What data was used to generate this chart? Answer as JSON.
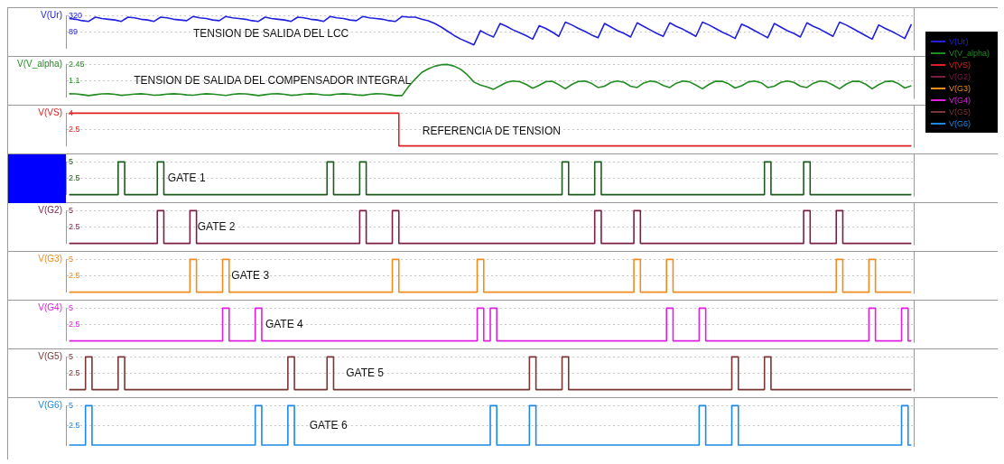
{
  "chart_data": [
    {
      "type": "line",
      "grid": "y",
      "legend": "right",
      "marker": "none",
      "ylim": [
        -140,
        320
      ],
      "yticks": [
        89,
        320
      ],
      "ylabel": "V(Ur)",
      "annotations": [
        "TENSION DE SALIDA DEL LCC"
      ],
      "categories": [
        null,
        null,
        null,
        null,
        null,
        null,
        null,
        null,
        null,
        null,
        null,
        null,
        null,
        null,
        null,
        null,
        null,
        null,
        null,
        null,
        null,
        null,
        null,
        null,
        null,
        null,
        null,
        null,
        null,
        null,
        null,
        null,
        null,
        null,
        null,
        null,
        null,
        null,
        null,
        null,
        null,
        null,
        null,
        null,
        null,
        null,
        null,
        null,
        null,
        null,
        null,
        null,
        null,
        null,
        null,
        null,
        null,
        null,
        null,
        null,
        null,
        null,
        null,
        null,
        null,
        null,
        null,
        null,
        null,
        null,
        null,
        null,
        null,
        null,
        null,
        null,
        null,
        null,
        null,
        null,
        null,
        null,
        null,
        null,
        null,
        null,
        null,
        null,
        null,
        null,
        null,
        null,
        null,
        null,
        null,
        null,
        null,
        null,
        null,
        null,
        null,
        null,
        null,
        null,
        null,
        null,
        null,
        null,
        null,
        null,
        null,
        null,
        null,
        null,
        null,
        null,
        null,
        null,
        null,
        null,
        null,
        null,
        null,
        null,
        null,
        null,
        null,
        null,
        null,
        null
      ],
      "series": [
        {
          "name": "V(Ur)",
          "color": "#2020e0",
          "values": [
            280,
            270,
            250,
            240,
            300,
            280,
            270,
            260,
            240,
            300,
            290,
            270,
            260,
            240,
            300,
            290,
            270,
            260,
            250,
            310,
            290,
            280,
            260,
            250,
            310,
            290,
            280,
            270,
            250,
            240,
            300,
            280,
            270,
            260,
            240,
            300,
            290,
            270,
            260,
            240,
            310,
            290,
            280,
            260,
            250,
            310,
            290,
            280,
            270,
            250,
            240,
            310,
            300,
            300,
            270,
            250,
            210,
            160,
            100,
            40,
            -10,
            -50,
            -90,
            110,
            60,
            20,
            210,
            170,
            120,
            80,
            40,
            -10,
            180,
            140,
            90,
            30,
            230,
            190,
            140,
            100,
            50,
            10,
            210,
            160,
            110,
            70,
            20,
            220,
            170,
            120,
            70,
            30,
            220,
            170,
            130,
            80,
            30,
            230,
            190,
            140,
            90,
            50,
            0,
            200,
            160,
            110,
            60,
            10,
            210,
            160,
            110,
            70,
            20,
            220,
            170,
            130,
            80,
            30,
            230,
            190,
            140,
            90,
            40,
            -10,
            190,
            140,
            100,
            50,
            0,
            200
          ]
        }
      ]
    },
    {
      "type": "line",
      "grid": "y",
      "legend": "right",
      "marker": "none",
      "ylim": [
        -0.3,
        2.45
      ],
      "yticks": [
        1.1,
        2.45
      ],
      "ylabel": "V(V_alpha)",
      "annotations": [
        "TENSION DE SALIDA DEL COMPENSADOR INTEGRAL"
      ],
      "categories": [
        null,
        null,
        null,
        null,
        null,
        null,
        null,
        null,
        null,
        null,
        null,
        null,
        null,
        null,
        null,
        null,
        null,
        null,
        null,
        null,
        null,
        null,
        null,
        null,
        null,
        null,
        null,
        null,
        null,
        null,
        null,
        null,
        null,
        null,
        null,
        null,
        null,
        null,
        null,
        null,
        null,
        null,
        null,
        null,
        null,
        null,
        null,
        null,
        null,
        null,
        null,
        null,
        null,
        null,
        null,
        null,
        null,
        null,
        null,
        null,
        null,
        null,
        null,
        null,
        null,
        null,
        null,
        null,
        null,
        null,
        null,
        null,
        null,
        null,
        null,
        null,
        null,
        null,
        null,
        null,
        null,
        null,
        null,
        null,
        null,
        null,
        null,
        null,
        null,
        null,
        null,
        null,
        null,
        null,
        null,
        null,
        null,
        null,
        null,
        null,
        null,
        null,
        null,
        null,
        null,
        null,
        null,
        null,
        null,
        null,
        null,
        null,
        null,
        null,
        null,
        null,
        null,
        null,
        null,
        null,
        null,
        null,
        null,
        null,
        null,
        null,
        null,
        null,
        null,
        null
      ],
      "series": [
        {
          "name": "V(V_alpha)",
          "color": "#228b22",
          "values": [
            -0.02,
            -0.03,
            -0.09,
            -0.17,
            -0.09,
            -0.03,
            -0.02,
            -0.06,
            -0.15,
            -0.1,
            -0.04,
            -0.02,
            -0.06,
            -0.14,
            -0.11,
            -0.05,
            -0.02,
            -0.05,
            -0.11,
            -0.14,
            -0.06,
            -0.02,
            -0.04,
            -0.1,
            -0.16,
            -0.07,
            -0.02,
            -0.03,
            -0.09,
            -0.17,
            -0.09,
            -0.03,
            -0.02,
            -0.07,
            -0.15,
            -0.11,
            -0.04,
            -0.02,
            -0.05,
            -0.12,
            -0.13,
            -0.05,
            -0.02,
            -0.04,
            -0.11,
            -0.15,
            -0.07,
            -0.02,
            -0.03,
            -0.09,
            -0.17,
            -0.17,
            0.6,
            1.22,
            1.78,
            2.08,
            2.3,
            2.43,
            2.45,
            2.3,
            2.03,
            1.57,
            0.97,
            0.72,
            0.57,
            0.36,
            0.66,
            0.94,
            1.06,
            1.0,
            0.77,
            0.45,
            0.7,
            1.0,
            1.04,
            0.74,
            0.4,
            0.77,
            1.02,
            1.05,
            0.86,
            0.51,
            0.62,
            0.94,
            1.06,
            0.94,
            0.62,
            0.51,
            0.89,
            1.05,
            0.97,
            0.68,
            0.51,
            0.87,
            1.05,
            0.99,
            0.71,
            0.4,
            0.77,
            1.03,
            1.04,
            0.82,
            0.47,
            0.66,
            0.97,
            1.06,
            0.91,
            0.51,
            0.62,
            0.94,
            1.06,
            0.94,
            0.62,
            0.51,
            0.87,
            1.05,
            0.99,
            0.71,
            0.4,
            0.79,
            1.03,
            1.03,
            0.79,
            0.4,
            0.75,
            1.01,
            1.05,
            0.84,
            0.47,
            0.66
          ]
        }
      ]
    },
    {
      "type": "step",
      "grid": "y",
      "legend": "right",
      "marker": "none",
      "ylim": [
        1,
        4
      ],
      "yticks": [
        2.5,
        4
      ],
      "ylabel": "V(VS)",
      "annotations": [
        "REFERENCIA DE TENSION"
      ],
      "categories": [
        null,
        null,
        null,
        null,
        null,
        null,
        null,
        null,
        null,
        null,
        null,
        null,
        null,
        null,
        null,
        null,
        null,
        null,
        null,
        null,
        null,
        null,
        null,
        null,
        null,
        null,
        null,
        null,
        null,
        null,
        null,
        null,
        null,
        null,
        null,
        null,
        null,
        null,
        null,
        null,
        null,
        null,
        null,
        null,
        null,
        null,
        null,
        null,
        null,
        null,
        null,
        null,
        null,
        null,
        null,
        null,
        null,
        null,
        null,
        null,
        null,
        null,
        null,
        null,
        null,
        null,
        null,
        null,
        null,
        null,
        null,
        null,
        null,
        null,
        null,
        null,
        null,
        null,
        null,
        null,
        null,
        null,
        null,
        null,
        null,
        null,
        null,
        null,
        null,
        null,
        null,
        null,
        null,
        null,
        null,
        null,
        null,
        null,
        null,
        null,
        null,
        null,
        null,
        null,
        null,
        null,
        null,
        null,
        null,
        null,
        null,
        null,
        null,
        null,
        null,
        null,
        null,
        null,
        null,
        null,
        null,
        null,
        null,
        null,
        null,
        null,
        null,
        null,
        null,
        null
      ],
      "series": [
        {
          "name": "V(VS)",
          "color": "#e02020",
          "values": [
            4,
            4,
            4,
            4,
            4,
            4,
            4,
            4,
            4,
            4,
            4,
            4,
            4,
            4,
            4,
            4,
            4,
            4,
            4,
            4,
            4,
            4,
            4,
            4,
            4,
            4,
            4,
            4,
            4,
            4,
            4,
            4,
            4,
            4,
            4,
            4,
            4,
            4,
            4,
            4,
            4,
            4,
            4,
            4,
            4,
            4,
            4,
            4,
            4,
            4,
            4,
            1,
            1,
            1,
            1,
            1,
            1,
            1,
            1,
            1,
            1,
            1,
            1,
            1,
            1,
            1,
            1,
            1,
            1,
            1,
            1,
            1,
            1,
            1,
            1,
            1,
            1,
            1,
            1,
            1,
            1,
            1,
            1,
            1,
            1,
            1,
            1,
            1,
            1,
            1,
            1,
            1,
            1,
            1,
            1,
            1,
            1,
            1,
            1,
            1,
            1,
            1,
            1,
            1,
            1,
            1,
            1,
            1,
            1,
            1,
            1,
            1,
            1,
            1,
            1,
            1,
            1,
            1,
            1,
            1,
            1,
            1,
            1,
            1,
            1,
            1,
            1,
            1,
            1,
            1
          ]
        }
      ]
    },
    {
      "type": "step",
      "grid": "y",
      "marker": "none",
      "ylim": [
        0,
        5
      ],
      "yticks": [
        2.5,
        5
      ],
      "annotations": [
        "GATE 1"
      ],
      "categories": [
        null,
        null,
        null,
        null,
        null,
        null,
        null,
        null,
        null,
        null,
        null,
        null,
        null,
        null,
        null,
        null,
        null,
        null,
        null,
        null,
        null,
        null,
        null,
        null,
        null,
        null,
        null,
        null,
        null,
        null,
        null,
        null,
        null,
        null,
        null,
        null,
        null,
        null,
        null,
        null,
        null,
        null,
        null,
        null,
        null,
        null,
        null,
        null,
        null,
        null,
        null,
        null,
        null,
        null,
        null,
        null,
        null,
        null,
        null,
        null,
        null,
        null,
        null,
        null,
        null,
        null,
        null,
        null,
        null,
        null,
        null,
        null,
        null,
        null,
        null,
        null,
        null,
        null,
        null,
        null,
        null,
        null,
        null,
        null,
        null,
        null,
        null,
        null,
        null,
        null,
        null,
        null,
        null,
        null,
        null,
        null,
        null,
        null,
        null,
        null,
        null,
        null,
        null,
        null,
        null,
        null,
        null,
        null,
        null,
        null,
        null,
        null,
        null,
        null,
        null,
        null,
        null,
        null,
        null,
        null,
        null,
        null,
        null,
        null,
        null,
        null,
        null,
        null,
        null,
        null
      ],
      "series": [
        {
          "color": "#1d5a1d",
          "values": [
            0,
            0,
            0,
            0,
            0,
            0,
            0,
            0,
            5,
            0,
            0,
            0,
            0,
            0,
            5,
            0,
            0,
            0,
            0,
            0,
            0,
            0,
            0,
            0,
            0,
            0,
            0,
            0,
            0,
            0,
            0,
            0,
            0,
            0,
            0,
            0,
            0,
            0,
            0,
            0,
            5,
            0,
            0,
            0,
            0,
            5,
            0,
            0,
            0,
            0,
            0,
            0,
            0,
            0,
            0,
            0,
            0,
            0,
            0,
            0,
            0,
            0,
            0,
            0,
            0,
            0,
            0,
            0,
            0,
            0,
            0,
            0,
            0,
            0,
            0,
            0,
            5,
            0,
            0,
            0,
            0,
            5,
            0,
            0,
            0,
            0,
            0,
            0,
            0,
            0,
            0,
            0,
            0,
            0,
            0,
            0,
            0,
            0,
            0,
            0,
            0,
            0,
            0,
            0,
            0,
            0,
            0,
            5,
            0,
            0,
            0,
            0,
            0,
            5,
            0,
            0,
            0,
            0,
            0,
            0,
            0,
            0,
            0,
            0,
            0,
            0,
            0,
            0,
            0,
            0
          ]
        }
      ]
    },
    {
      "type": "step",
      "grid": "y",
      "legend": "right",
      "marker": "none",
      "ylim": [
        0,
        5
      ],
      "yticks": [
        2.5,
        5
      ],
      "ylabel": "V(G2)",
      "annotations": [
        "GATE 2"
      ],
      "categories": [
        null,
        null,
        null,
        null,
        null,
        null,
        null,
        null,
        null,
        null,
        null,
        null,
        null,
        null,
        null,
        null,
        null,
        null,
        null,
        null,
        null,
        null,
        null,
        null,
        null,
        null,
        null,
        null,
        null,
        null,
        null,
        null,
        null,
        null,
        null,
        null,
        null,
        null,
        null,
        null,
        null,
        null,
        null,
        null,
        null,
        null,
        null,
        null,
        null,
        null,
        null,
        null,
        null,
        null,
        null,
        null,
        null,
        null,
        null,
        null,
        null,
        null,
        null,
        null,
        null,
        null,
        null,
        null,
        null,
        null,
        null,
        null,
        null,
        null,
        null,
        null,
        null,
        null,
        null,
        null,
        null,
        null,
        null,
        null,
        null,
        null,
        null,
        null,
        null,
        null,
        null,
        null,
        null,
        null,
        null,
        null,
        null,
        null,
        null,
        null,
        null,
        null,
        null,
        null,
        null,
        null,
        null,
        null,
        null,
        null,
        null,
        null,
        null,
        null,
        null,
        null,
        null,
        null,
        null,
        null,
        null,
        null,
        null,
        null,
        null,
        null,
        null,
        null,
        null,
        null
      ],
      "series": [
        {
          "name": "V(G2)",
          "color": "#7a1f45",
          "values": [
            0,
            0,
            0,
            0,
            0,
            0,
            0,
            0,
            0,
            0,
            0,
            0,
            0,
            0,
            5,
            0,
            0,
            0,
            0,
            5,
            0,
            0,
            0,
            0,
            0,
            0,
            0,
            0,
            0,
            0,
            0,
            0,
            0,
            0,
            0,
            0,
            0,
            0,
            0,
            0,
            0,
            0,
            0,
            0,
            0,
            5,
            0,
            0,
            0,
            0,
            5,
            0,
            0,
            0,
            0,
            0,
            0,
            0,
            0,
            0,
            0,
            0,
            0,
            0,
            0,
            0,
            0,
            0,
            0,
            0,
            0,
            0,
            0,
            0,
            0,
            0,
            0,
            0,
            0,
            0,
            0,
            5,
            0,
            0,
            0,
            0,
            0,
            5,
            0,
            0,
            0,
            0,
            0,
            0,
            0,
            0,
            0,
            0,
            0,
            0,
            0,
            0,
            0,
            0,
            0,
            0,
            0,
            0,
            0,
            0,
            0,
            0,
            0,
            5,
            0,
            0,
            0,
            0,
            5,
            0,
            0,
            0,
            0,
            0,
            0,
            0,
            0,
            0,
            0,
            0
          ]
        }
      ]
    },
    {
      "type": "step",
      "grid": "y",
      "legend": "right",
      "marker": "none",
      "ylim": [
        0,
        5
      ],
      "yticks": [
        2.5,
        5
      ],
      "ylabel": "V(G3)",
      "annotations": [
        "GATE 3"
      ],
      "categories": [
        null,
        null,
        null,
        null,
        null,
        null,
        null,
        null,
        null,
        null,
        null,
        null,
        null,
        null,
        null,
        null,
        null,
        null,
        null,
        null,
        null,
        null,
        null,
        null,
        null,
        null,
        null,
        null,
        null,
        null,
        null,
        null,
        null,
        null,
        null,
        null,
        null,
        null,
        null,
        null,
        null,
        null,
        null,
        null,
        null,
        null,
        null,
        null,
        null,
        null,
        null,
        null,
        null,
        null,
        null,
        null,
        null,
        null,
        null,
        null,
        null,
        null,
        null,
        null,
        null,
        null,
        null,
        null,
        null,
        null,
        null,
        null,
        null,
        null,
        null,
        null,
        null,
        null,
        null,
        null,
        null,
        null,
        null,
        null,
        null,
        null,
        null,
        null,
        null,
        null,
        null,
        null,
        null,
        null,
        null,
        null,
        null,
        null,
        null,
        null,
        null,
        null,
        null,
        null,
        null,
        null,
        null,
        null,
        null,
        null,
        null,
        null,
        null,
        null,
        null,
        null,
        null,
        null,
        null,
        null,
        null,
        null,
        null,
        null,
        null,
        null,
        null,
        null,
        null,
        null
      ],
      "series": [
        {
          "name": "V(G3)",
          "color": "#f08c1e",
          "values": [
            0,
            0,
            0,
            0,
            0,
            0,
            0,
            0,
            0,
            0,
            0,
            0,
            0,
            0,
            0,
            0,
            0,
            0,
            0,
            5,
            0,
            0,
            0,
            0,
            5,
            0,
            0,
            0,
            0,
            0,
            0,
            0,
            0,
            0,
            0,
            0,
            0,
            0,
            0,
            0,
            0,
            0,
            0,
            0,
            0,
            0,
            0,
            0,
            0,
            0,
            5,
            0,
            0,
            0,
            0,
            0,
            0,
            0,
            0,
            0,
            0,
            0,
            0,
            5,
            0,
            0,
            0,
            0,
            0,
            0,
            0,
            0,
            0,
            0,
            0,
            0,
            0,
            0,
            0,
            0,
            0,
            0,
            0,
            0,
            0,
            0,
            0,
            5,
            0,
            0,
            0,
            0,
            5,
            0,
            0,
            0,
            0,
            0,
            0,
            0,
            0,
            0,
            0,
            0,
            0,
            0,
            0,
            0,
            0,
            0,
            0,
            0,
            0,
            0,
            0,
            0,
            0,
            0,
            5,
            0,
            0,
            0,
            0,
            5,
            0,
            0,
            0,
            0,
            0,
            0
          ]
        }
      ]
    },
    {
      "type": "step",
      "grid": "y",
      "legend": "right",
      "marker": "none",
      "ylim": [
        0,
        5
      ],
      "yticks": [
        2.5,
        5
      ],
      "ylabel": "V(G4)",
      "annotations": [
        "GATE 4"
      ],
      "categories": [
        null,
        null,
        null,
        null,
        null,
        null,
        null,
        null,
        null,
        null,
        null,
        null,
        null,
        null,
        null,
        null,
        null,
        null,
        null,
        null,
        null,
        null,
        null,
        null,
        null,
        null,
        null,
        null,
        null,
        null,
        null,
        null,
        null,
        null,
        null,
        null,
        null,
        null,
        null,
        null,
        null,
        null,
        null,
        null,
        null,
        null,
        null,
        null,
        null,
        null,
        null,
        null,
        null,
        null,
        null,
        null,
        null,
        null,
        null,
        null,
        null,
        null,
        null,
        null,
        null,
        null,
        null,
        null,
        null,
        null,
        null,
        null,
        null,
        null,
        null,
        null,
        null,
        null,
        null,
        null,
        null,
        null,
        null,
        null,
        null,
        null,
        null,
        null,
        null,
        null,
        null,
        null,
        null,
        null,
        null,
        null,
        null,
        null,
        null,
        null,
        null,
        null,
        null,
        null,
        null,
        null,
        null,
        null,
        null,
        null,
        null,
        null,
        null,
        null,
        null,
        null,
        null,
        null,
        null,
        null,
        null,
        null,
        null,
        null,
        null,
        null,
        null,
        null,
        null,
        null
      ],
      "series": [
        {
          "name": "V(G4)",
          "color": "#e020e0",
          "values": [
            0,
            0,
            0,
            0,
            0,
            0,
            0,
            0,
            0,
            0,
            0,
            0,
            0,
            0,
            0,
            0,
            0,
            0,
            0,
            0,
            0,
            0,
            0,
            0,
            5,
            0,
            0,
            0,
            0,
            5,
            0,
            0,
            0,
            0,
            0,
            0,
            0,
            0,
            0,
            0,
            0,
            0,
            0,
            0,
            0,
            0,
            0,
            0,
            0,
            0,
            0,
            0,
            0,
            0,
            0,
            0,
            0,
            0,
            0,
            0,
            0,
            0,
            0,
            5,
            0,
            5,
            0,
            0,
            0,
            0,
            0,
            0,
            0,
            0,
            0,
            0,
            0,
            0,
            0,
            0,
            0,
            0,
            0,
            0,
            0,
            0,
            0,
            0,
            0,
            0,
            0,
            0,
            5,
            0,
            0,
            0,
            0,
            5,
            0,
            0,
            0,
            0,
            0,
            0,
            0,
            0,
            0,
            0,
            0,
            0,
            0,
            0,
            0,
            0,
            0,
            0,
            0,
            0,
            0,
            0,
            0,
            0,
            0,
            5,
            0,
            0,
            0,
            0,
            5,
            0
          ]
        }
      ]
    },
    {
      "type": "step",
      "grid": "y",
      "legend": "right",
      "marker": "none",
      "ylim": [
        0,
        5
      ],
      "yticks": [
        2.5,
        5
      ],
      "ylabel": "V(G5)",
      "annotations": [
        "GATE 5"
      ],
      "categories": [
        null,
        null,
        null,
        null,
        null,
        null,
        null,
        null,
        null,
        null,
        null,
        null,
        null,
        null,
        null,
        null,
        null,
        null,
        null,
        null,
        null,
        null,
        null,
        null,
        null,
        null,
        null,
        null,
        null,
        null,
        null,
        null,
        null,
        null,
        null,
        null,
        null,
        null,
        null,
        null,
        null,
        null,
        null,
        null,
        null,
        null,
        null,
        null,
        null,
        null,
        null,
        null,
        null,
        null,
        null,
        null,
        null,
        null,
        null,
        null,
        null,
        null,
        null,
        null,
        null,
        null,
        null,
        null,
        null,
        null,
        null,
        null,
        null,
        null,
        null,
        null,
        null,
        null,
        null,
        null,
        null,
        null,
        null,
        null,
        null,
        null,
        null,
        null,
        null,
        null,
        null,
        null,
        null,
        null,
        null,
        null,
        null,
        null,
        null,
        null,
        null,
        null,
        null,
        null,
        null,
        null,
        null,
        null,
        null,
        null,
        null,
        null,
        null,
        null,
        null,
        null,
        null,
        null,
        null,
        null,
        null,
        null,
        null,
        null,
        null,
        null,
        null,
        null,
        null,
        null
      ],
      "series": [
        {
          "name": "V(G5)",
          "color": "#7a3535",
          "values": [
            0,
            0,
            0,
            5,
            0,
            0,
            0,
            0,
            5,
            0,
            0,
            0,
            0,
            0,
            0,
            0,
            0,
            0,
            0,
            0,
            0,
            0,
            0,
            0,
            0,
            0,
            0,
            0,
            0,
            0,
            0,
            0,
            0,
            0,
            5,
            0,
            0,
            0,
            0,
            0,
            5,
            0,
            0,
            0,
            0,
            0,
            0,
            0,
            0,
            0,
            0,
            0,
            0,
            0,
            0,
            0,
            0,
            0,
            0,
            0,
            0,
            0,
            0,
            0,
            0,
            0,
            0,
            0,
            0,
            0,
            0,
            5,
            0,
            0,
            0,
            0,
            5,
            0,
            0,
            0,
            0,
            0,
            0,
            0,
            0,
            0,
            0,
            0,
            0,
            0,
            0,
            0,
            0,
            0,
            0,
            0,
            0,
            0,
            0,
            0,
            0,
            0,
            5,
            0,
            0,
            0,
            0,
            5,
            0,
            0,
            0,
            0,
            0,
            0,
            0,
            0,
            0,
            0,
            0,
            0,
            0,
            0,
            0,
            0,
            0,
            0,
            0,
            0,
            0,
            0
          ]
        }
      ]
    },
    {
      "type": "step",
      "grid": "y",
      "legend": "right",
      "marker": "none",
      "ylim": [
        0,
        5
      ],
      "yticks": [
        2.5,
        5
      ],
      "ylabel": "V(G6)",
      "annotations": [
        "GATE 6"
      ],
      "categories": [
        null,
        null,
        null,
        null,
        null,
        null,
        null,
        null,
        null,
        null,
        null,
        null,
        null,
        null,
        null,
        null,
        null,
        null,
        null,
        null,
        null,
        null,
        null,
        null,
        null,
        null,
        null,
        null,
        null,
        null,
        null,
        null,
        null,
        null,
        null,
        null,
        null,
        null,
        null,
        null,
        null,
        null,
        null,
        null,
        null,
        null,
        null,
        null,
        null,
        null,
        null,
        null,
        null,
        null,
        null,
        null,
        null,
        null,
        null,
        null,
        null,
        null,
        null,
        null,
        null,
        null,
        null,
        null,
        null,
        null,
        null,
        null,
        null,
        null,
        null,
        null,
        null,
        null,
        null,
        null,
        null,
        null,
        null,
        null,
        null,
        null,
        null,
        null,
        null,
        null,
        null,
        null,
        null,
        null,
        null,
        null,
        null,
        null,
        null,
        null,
        null,
        null,
        null,
        null,
        null,
        null,
        null,
        null,
        null,
        null,
        null,
        null,
        null,
        null,
        null,
        null,
        null,
        null,
        null,
        null,
        null,
        null,
        null,
        null,
        null,
        null,
        null,
        null,
        null,
        null
      ],
      "series": [
        {
          "name": "V(G6)",
          "color": "#1e88e5",
          "values": [
            0,
            0,
            0,
            5,
            0,
            0,
            0,
            0,
            0,
            0,
            0,
            0,
            0,
            0,
            0,
            0,
            0,
            0,
            0,
            0,
            0,
            0,
            0,
            0,
            0,
            0,
            0,
            0,
            0,
            5,
            0,
            0,
            0,
            0,
            5,
            0,
            0,
            0,
            0,
            0,
            0,
            0,
            0,
            0,
            0,
            0,
            0,
            0,
            0,
            0,
            0,
            0,
            0,
            0,
            0,
            0,
            0,
            0,
            0,
            0,
            0,
            0,
            0,
            0,
            0,
            5,
            0,
            0,
            0,
            0,
            0,
            5,
            0,
            0,
            0,
            0,
            0,
            0,
            0,
            0,
            0,
            0,
            0,
            0,
            0,
            0,
            0,
            0,
            0,
            0,
            0,
            0,
            0,
            0,
            0,
            0,
            0,
            5,
            0,
            0,
            0,
            0,
            5,
            0,
            0,
            0,
            0,
            0,
            0,
            0,
            0,
            0,
            0,
            0,
            0,
            0,
            0,
            0,
            0,
            0,
            0,
            0,
            0,
            0,
            0,
            0,
            0,
            0,
            5,
            0
          ]
        }
      ]
    }
  ]
}
